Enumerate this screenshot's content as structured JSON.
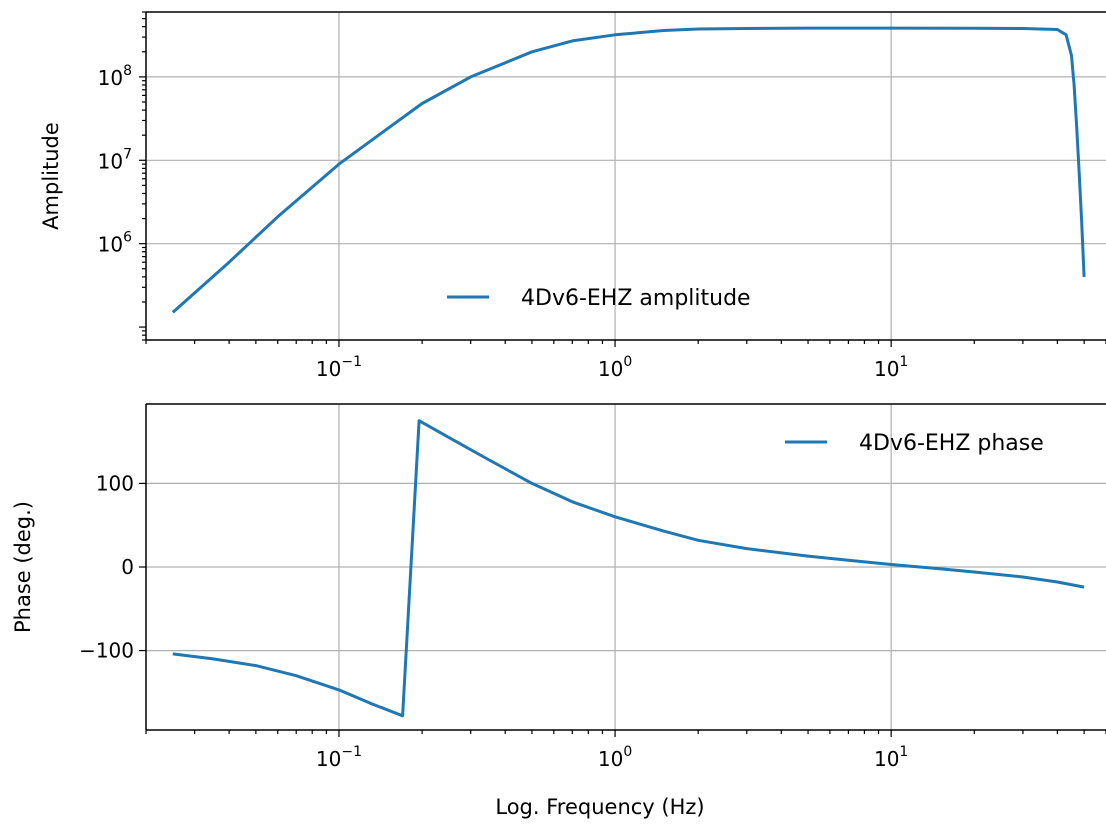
{
  "chart_data": [
    {
      "type": "line",
      "xscale": "log",
      "yscale": "log",
      "xlim": [
        0.02,
        60
      ],
      "ylim": [
        70000,
        600000000
      ],
      "ylabel": "Amplitude",
      "xlabel": "",
      "grid": true,
      "legend_position": "lower-center",
      "x_ticks": [
        {
          "base": "10",
          "exp": "−1"
        },
        {
          "base": "10",
          "exp": "0"
        },
        {
          "base": "10",
          "exp": "1"
        }
      ],
      "y_ticks": [
        {
          "base": "10",
          "exp": "6"
        },
        {
          "base": "10",
          "exp": "7"
        },
        {
          "base": "10",
          "exp": "8"
        }
      ],
      "series": [
        {
          "name": "4Dv6-EHZ amplitude",
          "color": "#1f77b4",
          "x": [
            0.025,
            0.04,
            0.06,
            0.1,
            0.15,
            0.2,
            0.3,
            0.5,
            0.7,
            1.0,
            1.5,
            2,
            3,
            5,
            10,
            20,
            30,
            40,
            43,
            45,
            46,
            47,
            48,
            49,
            50
          ],
          "y": [
            150000,
            600000,
            2100000,
            9000000,
            24000000,
            48000000,
            100000000,
            200000000,
            270000000,
            320000000,
            360000000,
            375000000,
            380000000,
            385000000,
            385000000,
            383000000,
            380000000,
            370000000,
            320000000,
            180000000,
            80000000,
            25000000,
            7000000,
            1800000,
            400000
          ]
        }
      ]
    },
    {
      "type": "line",
      "xscale": "log",
      "yscale": "linear",
      "xlim": [
        0.02,
        60
      ],
      "ylim": [
        -195,
        195
      ],
      "ylabel": "Phase (deg.)",
      "xlabel": "Log. Frequency (Hz)",
      "grid": true,
      "legend_position": "top-right",
      "x_ticks": [
        {
          "base": "10",
          "exp": "−1"
        },
        {
          "base": "10",
          "exp": "0"
        },
        {
          "base": "10",
          "exp": "1"
        }
      ],
      "y_ticks": [
        "−100",
        "0",
        "100"
      ],
      "y_tick_values": [
        -100,
        0,
        100
      ],
      "series": [
        {
          "name": "4Dv6-EHZ phase",
          "color": "#1f77b4",
          "x": [
            0.025,
            0.035,
            0.05,
            0.07,
            0.1,
            0.13,
            0.17,
            0.195,
            0.25,
            0.35,
            0.5,
            0.7,
            1.0,
            1.5,
            2,
            3,
            5,
            7,
            10,
            15,
            20,
            30,
            40,
            50
          ],
          "y": [
            -104,
            -110,
            -118,
            -130,
            -147,
            -163,
            -178,
            175,
            155,
            128,
            100,
            78,
            60,
            43,
            32,
            22,
            13,
            8,
            3,
            -2,
            -6,
            -12,
            -18,
            -24
          ]
        }
      ]
    }
  ]
}
